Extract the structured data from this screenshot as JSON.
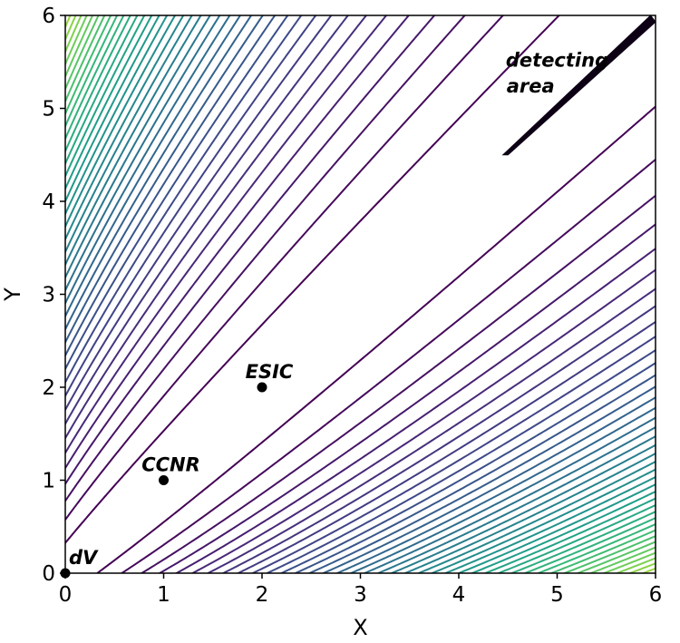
{
  "chart_data": {
    "type": "contour",
    "xlabel": "X",
    "ylabel": "Y",
    "xlim": [
      0,
      6
    ],
    "ylim": [
      0,
      6
    ],
    "xticks": [
      "0",
      "1",
      "2",
      "3",
      "4",
      "5",
      "6"
    ],
    "yticks": [
      "0",
      "1",
      "2",
      "3",
      "4",
      "5",
      "6"
    ],
    "grid": false,
    "legend": "none",
    "colormap": "viridis",
    "colors": {
      "low": "#440154",
      "mid": "#21918c",
      "high": "#fde725",
      "marker": "#000000"
    },
    "contours": {
      "function": "(x - y)^2 / (1 + x + y)",
      "levels_start": 0.08,
      "levels_step": 0.13,
      "levels_count": 46
    },
    "points": [
      {
        "label": "dV",
        "x": 0,
        "y": 0
      },
      {
        "label": "CCNR",
        "x": 1,
        "y": 1
      },
      {
        "label": "ESIC",
        "x": 2,
        "y": 2
      }
    ],
    "region": {
      "label_line1": "detecting",
      "label_line2": "area",
      "color": "#0d0015",
      "vertices": [
        [
          4.45,
          4.5
        ],
        [
          5.95,
          6.0
        ],
        [
          6.0,
          5.93
        ],
        [
          4.5,
          4.5
        ]
      ]
    }
  }
}
